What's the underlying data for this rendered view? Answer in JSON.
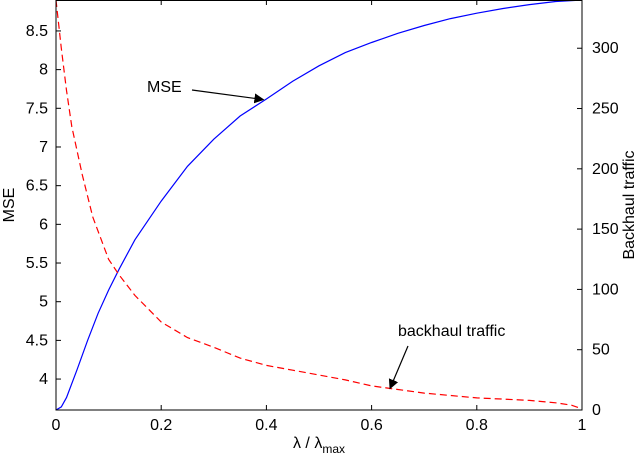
{
  "chart_data": {
    "type": "line",
    "title": "",
    "xlabel": "λ / λ",
    "xlabel_subscript": "max",
    "ylabel_left": "MSE",
    "ylabel_right": "Backhaul traffic",
    "xlim": [
      0,
      1
    ],
    "ylim_left": [
      3.6,
      8.9
    ],
    "ylim_right": [
      0,
      340
    ],
    "grid": false,
    "legend": "none",
    "x_ticks": [
      "0",
      "0.2",
      "0.4",
      "0.6",
      "0.8",
      "1"
    ],
    "x_tick_values": [
      0,
      0.2,
      0.4,
      0.6,
      0.8,
      1
    ],
    "y_left_ticks": [
      "4",
      "4.5",
      "5",
      "5.5",
      "6",
      "6.5",
      "7",
      "7.5",
      "8",
      "8.5"
    ],
    "y_left_tick_values": [
      4,
      4.5,
      5,
      5.5,
      6,
      6.5,
      7,
      7.5,
      8,
      8.5
    ],
    "y_right_ticks": [
      "0",
      "50",
      "100",
      "150",
      "200",
      "250",
      "300"
    ],
    "y_right_tick_values": [
      0,
      50,
      100,
      150,
      200,
      250,
      300
    ],
    "series": [
      {
        "name": "MSE",
        "axis": "left",
        "color": "#0000ff",
        "style": "solid",
        "x": [
          0,
          0.01,
          0.02,
          0.04,
          0.06,
          0.08,
          0.1,
          0.12,
          0.15,
          0.2,
          0.25,
          0.3,
          0.35,
          0.4,
          0.45,
          0.5,
          0.55,
          0.6,
          0.65,
          0.7,
          0.75,
          0.8,
          0.85,
          0.9,
          0.95,
          1.0
        ],
        "values": [
          3.6,
          3.64,
          3.76,
          4.12,
          4.5,
          4.85,
          5.15,
          5.42,
          5.8,
          6.3,
          6.75,
          7.1,
          7.4,
          7.62,
          7.85,
          8.05,
          8.22,
          8.35,
          8.47,
          8.57,
          8.66,
          8.73,
          8.79,
          8.84,
          8.88,
          8.9
        ]
      },
      {
        "name": "backhaul traffic",
        "axis": "right",
        "color": "#ff0000",
        "style": "dashed",
        "x": [
          0,
          0.01,
          0.02,
          0.03,
          0.05,
          0.07,
          0.1,
          0.12,
          0.15,
          0.2,
          0.25,
          0.3,
          0.35,
          0.4,
          0.45,
          0.5,
          0.55,
          0.6,
          0.65,
          0.7,
          0.75,
          0.8,
          0.85,
          0.9,
          0.95,
          0.98,
          1.0
        ],
        "values": [
          340,
          300,
          265,
          235,
          195,
          160,
          125,
          112,
          95,
          73,
          60,
          52,
          43,
          37,
          33,
          29,
          25,
          20,
          17,
          14,
          12,
          10,
          9,
          8,
          6,
          4,
          1
        ]
      }
    ],
    "annotations": [
      {
        "text": "MSE",
        "series": "MSE"
      },
      {
        "text": "backhaul traffic",
        "series": "backhaul traffic"
      }
    ]
  }
}
